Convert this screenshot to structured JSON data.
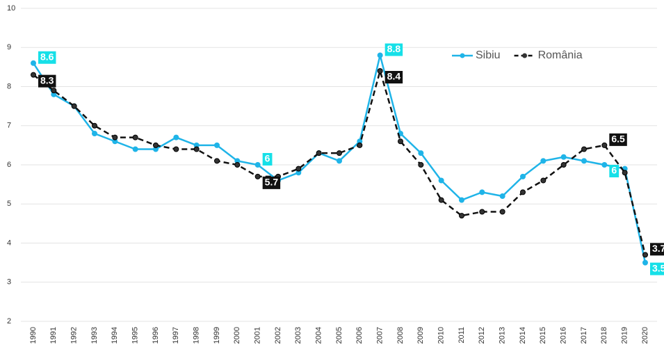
{
  "chart_data": {
    "type": "line",
    "categories": [
      "1990",
      "1991",
      "1992",
      "1993",
      "1994",
      "1995",
      "1996",
      "1997",
      "1998",
      "1999",
      "2000",
      "2001",
      "2002",
      "2003",
      "2004",
      "2005",
      "2006",
      "2007",
      "2008",
      "2009",
      "2010",
      "2011",
      "2012",
      "2013",
      "2014",
      "2015",
      "2016",
      "2017",
      "2018",
      "2019",
      "2020"
    ],
    "series": [
      {
        "name": "Sibiu",
        "color": "#1fb4e8",
        "dashed": false,
        "label_color": "#16e0e8",
        "values": [
          8.6,
          7.8,
          7.5,
          6.8,
          6.6,
          6.4,
          6.4,
          6.7,
          6.5,
          6.5,
          6.1,
          6.0,
          5.6,
          5.8,
          6.3,
          6.1,
          6.6,
          8.8,
          6.8,
          6.3,
          5.6,
          5.1,
          5.3,
          5.2,
          5.7,
          6.1,
          6.2,
          6.1,
          6.0,
          5.9,
          3.5
        ],
        "value_labels": [
          "8.6",
          null,
          null,
          null,
          null,
          null,
          null,
          null,
          null,
          null,
          null,
          "6",
          null,
          null,
          null,
          null,
          null,
          "8.8",
          null,
          null,
          null,
          null,
          null,
          null,
          null,
          null,
          null,
          null,
          "6",
          null,
          "3.5"
        ]
      },
      {
        "name": "România",
        "color": "#111111",
        "dashed": true,
        "label_color": "#111111",
        "values": [
          8.3,
          7.9,
          7.5,
          7.0,
          6.7,
          6.7,
          6.5,
          6.4,
          6.4,
          6.1,
          6.0,
          5.7,
          5.7,
          5.9,
          6.3,
          6.3,
          6.5,
          8.4,
          6.6,
          6.0,
          5.1,
          4.7,
          4.8,
          4.8,
          5.3,
          5.6,
          6.0,
          6.4,
          6.5,
          5.8,
          3.7
        ],
        "value_labels": [
          "8.3",
          null,
          null,
          null,
          null,
          null,
          null,
          null,
          null,
          null,
          null,
          "5.7",
          null,
          null,
          null,
          null,
          null,
          "8.4",
          null,
          null,
          null,
          null,
          null,
          null,
          null,
          null,
          null,
          null,
          "6.5",
          null,
          "3.7"
        ]
      }
    ],
    "ylim": [
      2,
      10
    ],
    "yticks": [
      2,
      3,
      4,
      5,
      6,
      7,
      8,
      9,
      10
    ],
    "grid": true,
    "legend": "top-right"
  }
}
